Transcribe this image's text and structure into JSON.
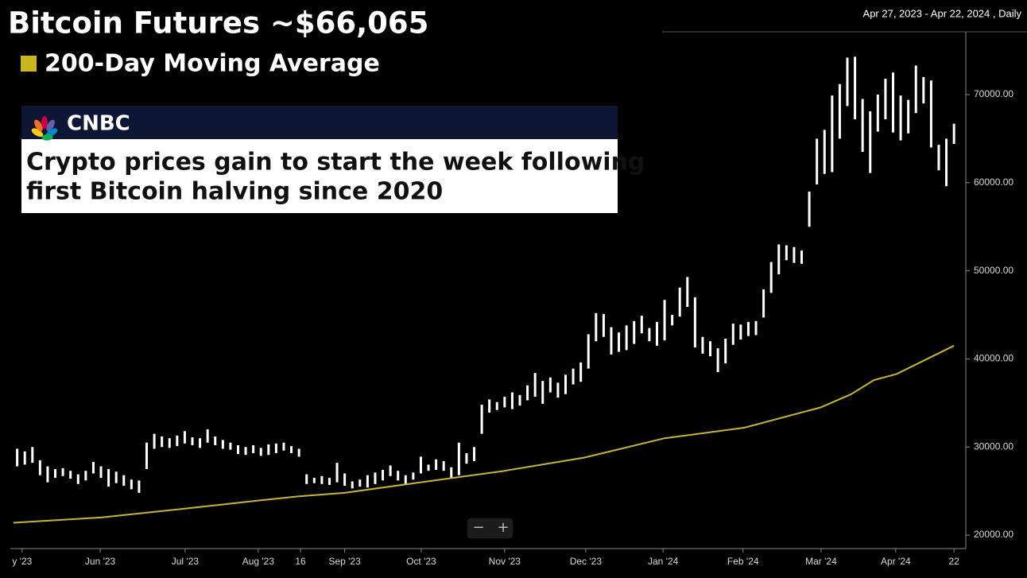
{
  "chart_data": {
    "type": "range-bar",
    "title": "Bitcoin Futures ~$66,065",
    "range_label": "Apr 27, 2023 - Apr 22, 2024 , Daily",
    "bar_color": "#ffffff",
    "x": [
      1,
      3,
      5,
      7,
      9,
      11,
      13,
      15,
      17,
      19,
      21,
      23,
      25,
      27,
      29,
      31,
      33,
      35,
      37,
      39,
      41,
      43,
      45,
      47,
      49,
      51,
      53,
      55,
      57,
      59,
      61,
      63,
      65,
      67,
      69,
      71,
      73,
      75,
      77,
      79,
      81,
      83,
      85,
      87,
      89,
      91,
      93,
      95,
      97,
      99,
      101,
      103,
      105,
      107,
      109,
      111,
      113,
      115,
      117,
      119,
      121,
      123,
      125,
      127,
      129,
      131,
      133,
      135,
      137,
      139,
      141,
      143,
      145,
      147,
      149,
      151,
      153,
      155,
      157,
      159,
      161,
      163,
      165,
      167,
      169,
      171,
      173,
      175,
      177,
      179,
      181,
      183,
      185,
      187,
      189,
      191,
      193,
      195,
      197,
      199,
      201,
      203,
      205,
      207,
      209,
      211,
      213,
      215,
      217,
      219,
      221,
      223,
      225,
      227,
      229,
      231,
      233,
      235,
      237,
      239,
      241,
      243,
      245,
      247
    ],
    "low": [
      27800,
      28000,
      28200,
      26800,
      26000,
      26500,
      26700,
      26400,
      25800,
      26200,
      27000,
      26500,
      25500,
      25900,
      25600,
      25200,
      24800,
      27500,
      29800,
      30000,
      29900,
      30100,
      30400,
      30200,
      29900,
      30500,
      30200,
      29800,
      29700,
      29200,
      29100,
      29300,
      29000,
      29100,
      29300,
      29600,
      29300,
      28900,
      25800,
      25900,
      25800,
      25700,
      26000,
      25600,
      25300,
      25500,
      25400,
      25800,
      26200,
      26700,
      26200,
      25800,
      26300,
      27000,
      27300,
      27400,
      27300,
      26500,
      26800,
      28100,
      28400,
      31500,
      33900,
      34200,
      34500,
      34300,
      34700,
      35300,
      35700,
      34900,
      36200,
      35600,
      36000,
      37100,
      37400,
      38900,
      42000,
      42500,
      40500,
      40800,
      41000,
      41700,
      42900,
      42000,
      41500,
      42100,
      43800,
      44800,
      45900,
      41300,
      40600,
      40300,
      38500,
      39500,
      41600,
      42200,
      42600,
      42700,
      44700,
      47500,
      49600,
      51200,
      50900,
      50800,
      55000,
      59800,
      61000,
      61200,
      65000,
      68700,
      67200,
      63500,
      61100,
      65800,
      67200,
      65700,
      64800,
      65600,
      67900,
      69000,
      64000,
      61400,
      59600,
      64400
    ],
    "high": [
      29800,
      29500,
      30000,
      28500,
      27800,
      27500,
      27600,
      27300,
      26900,
      27300,
      28300,
      27800,
      27500,
      27200,
      26800,
      26300,
      26200,
      30500,
      31500,
      31200,
      31000,
      31300,
      31800,
      31100,
      31000,
      32000,
      31200,
      30800,
      30500,
      30200,
      30000,
      30200,
      29900,
      30300,
      30400,
      30500,
      30100,
      29800,
      26900,
      26500,
      26700,
      26500,
      28200,
      27000,
      26100,
      26300,
      26800,
      27100,
      27400,
      27900,
      27300,
      26800,
      27100,
      28900,
      28000,
      28600,
      28400,
      27700,
      30500,
      29300,
      30000,
      34800,
      35400,
      35100,
      35700,
      36200,
      35900,
      37000,
      38400,
      37500,
      37900,
      37300,
      38200,
      38900,
      39600,
      42800,
      45200,
      45100,
      43600,
      43000,
      43800,
      44300,
      44900,
      43500,
      44200,
      46700,
      45000,
      48100,
      49300,
      47000,
      42500,
      42000,
      41200,
      42300,
      44000,
      43900,
      44200,
      44300,
      47900,
      51000,
      53000,
      52900,
      52700,
      52300,
      59000,
      65000,
      66000,
      69900,
      71200,
      74200,
      74300,
      69500,
      68100,
      70000,
      71800,
      72500,
      69900,
      69400,
      73300,
      72000,
      71600,
      64300,
      65000,
      66700
    ],
    "overlay": {
      "name": "200-Day Moving Average",
      "color": "#c9b81c",
      "x": [
        0,
        23,
        45,
        64,
        75,
        87,
        107,
        129,
        150,
        171,
        192,
        212,
        220,
        226,
        232,
        247
      ],
      "values": [
        21400,
        22000,
        23000,
        23900,
        24400,
        24800,
        26000,
        27300,
        28800,
        31000,
        32200,
        34500,
        36000,
        37600,
        38300,
        41500
      ]
    },
    "xlim": [
      -0.8,
      250.1
    ],
    "xticks": [
      {
        "value": 2.3,
        "label": "y '23"
      },
      {
        "value": 22.8,
        "label": "Jun '23"
      },
      {
        "value": 45.1,
        "label": "Jul '23"
      },
      {
        "value": 64.3,
        "label": "Aug '23"
      },
      {
        "value": 75.4,
        "label": "16"
      },
      {
        "value": 87,
        "label": "Sep '23"
      },
      {
        "value": 107.1,
        "label": "Oct '23"
      },
      {
        "value": 129,
        "label": "Nov '23"
      },
      {
        "value": 150.3,
        "label": "Dec '23"
      },
      {
        "value": 170.6,
        "label": "Jan '24"
      },
      {
        "value": 191.6,
        "label": "Feb '24"
      },
      {
        "value": 212.1,
        "label": "Mar '24"
      },
      {
        "value": 231.7,
        "label": "Apr '24"
      },
      {
        "value": 247,
        "label": "22"
      }
    ],
    "ylim": [
      18470,
      77130
    ],
    "yticks": [
      {
        "value": 20000,
        "label": "20000.00"
      },
      {
        "value": 30000,
        "label": "30000.00"
      },
      {
        "value": 40000,
        "label": "40000.00"
      },
      {
        "value": 50000,
        "label": "50000.00"
      },
      {
        "value": 60000,
        "label": "60000.00"
      },
      {
        "value": 70000,
        "label": "70000.00"
      }
    ]
  },
  "news": {
    "source": "CNBC",
    "headline": [
      "Crypto prices gain to start the week following",
      "first Bitcoin halving since 2020"
    ]
  },
  "controls": [
    "−",
    "+"
  ]
}
